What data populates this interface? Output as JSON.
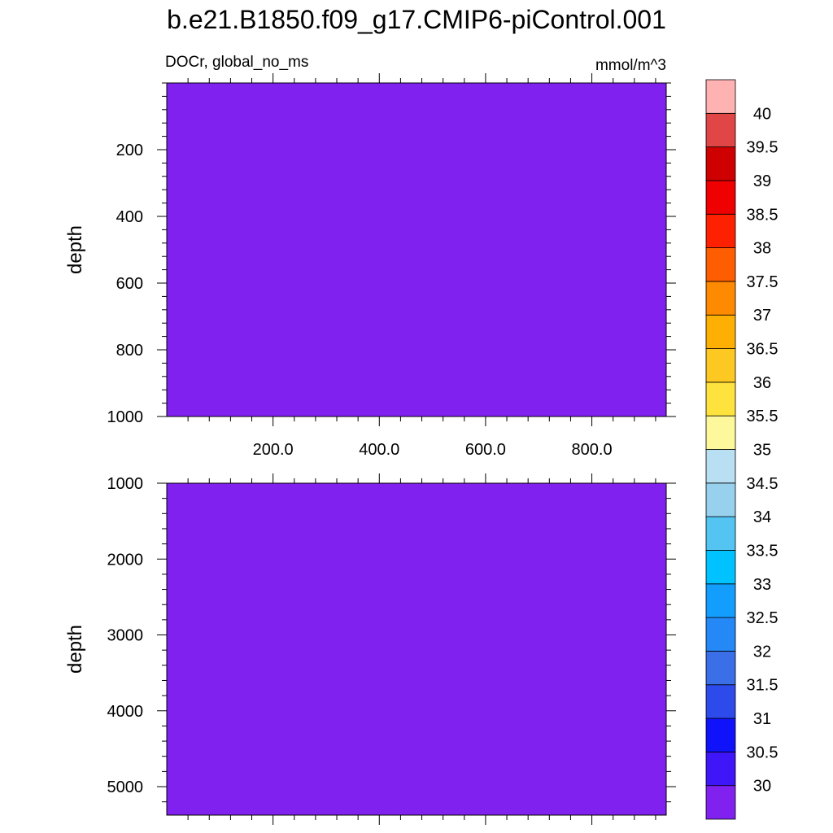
{
  "title": "b.e21.B1850.f09_g17.CMIP6-piControl.001",
  "left_label": "DOCr, global_no_ms",
  "units": "mmol/m^3",
  "fill_color": "#8121F0",
  "chart_data": [
    {
      "type": "heatmap",
      "panel": "upper",
      "ylabel": "depth",
      "y_reversed": true,
      "ylim": [
        0,
        1000
      ],
      "yticks": [
        "200",
        "400",
        "600",
        "800",
        "1000"
      ],
      "xlim": [
        0,
        940
      ],
      "xticks": [
        "200.0",
        "400.0",
        "600.0",
        "800.0"
      ],
      "field_value": "below 30",
      "grid": false
    },
    {
      "type": "heatmap",
      "panel": "lower",
      "ylabel": "depth",
      "y_reversed": true,
      "ylim": [
        1000,
        5375
      ],
      "yticks": [
        "1000",
        "2000",
        "3000",
        "4000",
        "5000"
      ],
      "xlim": [
        0,
        940
      ],
      "xticks": [],
      "field_value": "below 30",
      "grid": false
    }
  ],
  "colorbar": {
    "labels": [
      "30",
      "30.5",
      "31",
      "31.5",
      "32",
      "32.5",
      "33",
      "33.5",
      "34",
      "34.5",
      "35",
      "35.5",
      "36",
      "36.5",
      "37",
      "37.5",
      "38",
      "38.5",
      "39",
      "39.5",
      "40"
    ],
    "colors": [
      "#8121F0",
      "#3E16F8",
      "#1012F9",
      "#2D4BEB",
      "#3A6FE8",
      "#2489F6",
      "#139EFD",
      "#00C2FE",
      "#54C5F3",
      "#98D1EE",
      "#B9DFF3",
      "#FEF89C",
      "#FEE33E",
      "#FEC822",
      "#FDAF03",
      "#FE8A01",
      "#FE5D02",
      "#FD2101",
      "#EE0100",
      "#CF0100",
      "#E04646",
      "#FEB2B2"
    ]
  }
}
